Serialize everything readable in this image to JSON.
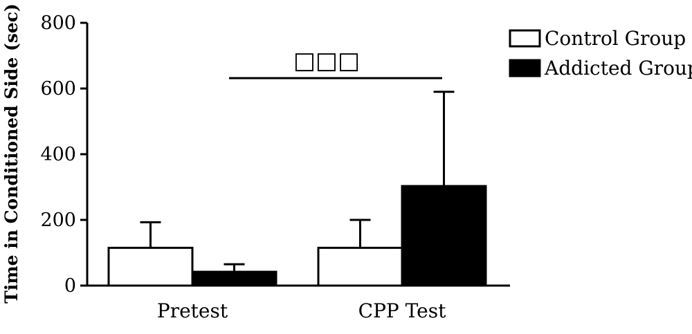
{
  "chart_data": {
    "type": "bar",
    "categories": [
      "Pretest",
      "CPP Test"
    ],
    "series": [
      {
        "name": "Control Group",
        "color": "#ffffff",
        "values": [
          115,
          115
        ],
        "errors": [
          78,
          85
        ]
      },
      {
        "name": "Addicted Group",
        "color": "#000000",
        "values": [
          42,
          303
        ],
        "errors": [
          23,
          287
        ]
      }
    ],
    "ylabel": "Time in Conditioned Side (sec)",
    "xlabel": "",
    "ylim": [
      0,
      800
    ],
    "yticks": [
      0,
      200,
      400,
      600,
      800
    ],
    "legend_position": "top-right",
    "grid": false,
    "significance": {
      "label": "□□□",
      "from": "Pretest",
      "to": "CPP Test"
    }
  }
}
